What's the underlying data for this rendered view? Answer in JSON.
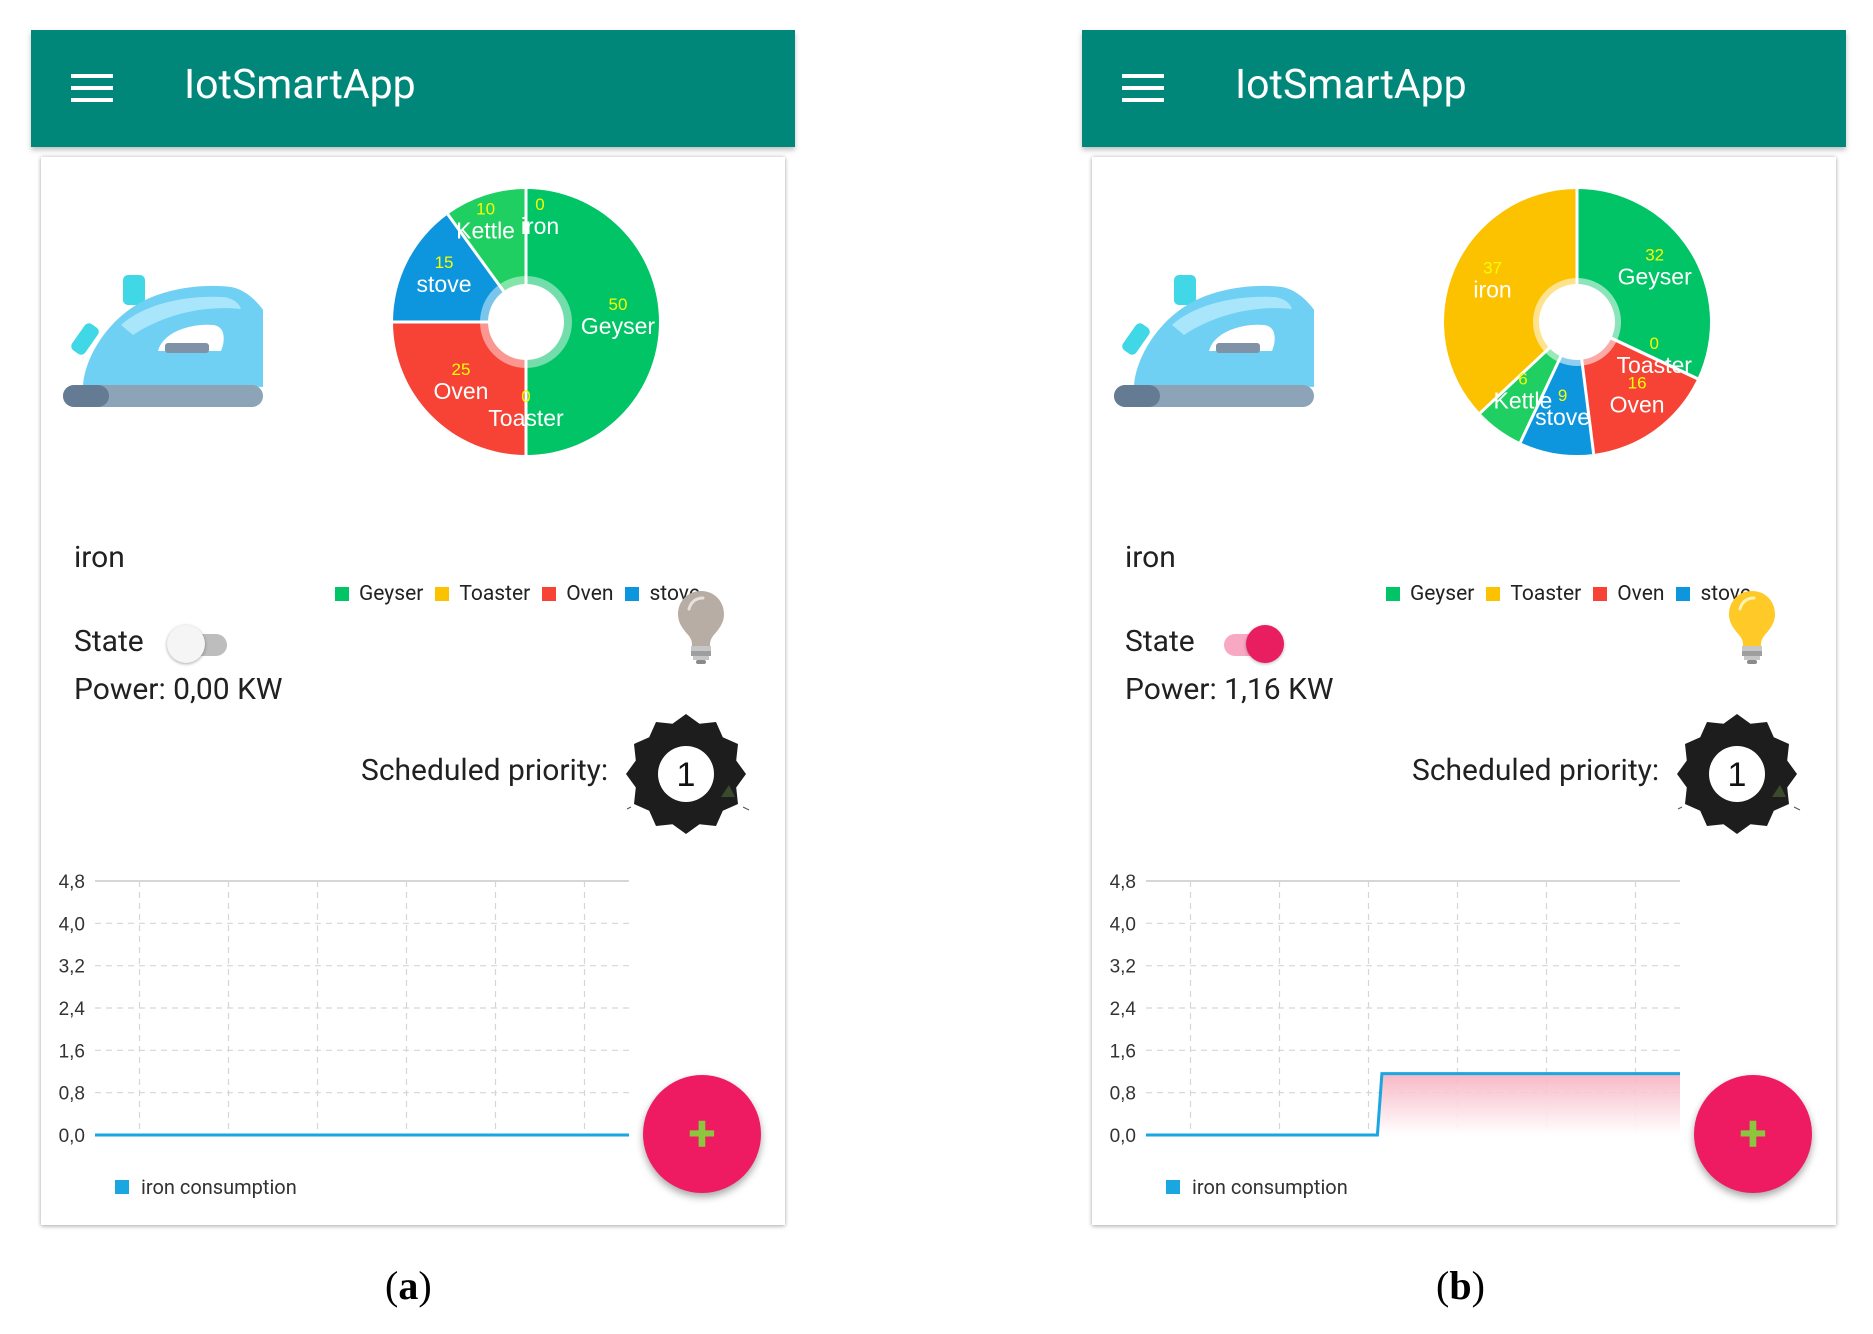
{
  "colors": {
    "appbar": "#01877a",
    "geyser": "#00c466",
    "toaster": "#fcc200",
    "oven": "#f64336",
    "stove": "#0d96dd",
    "kettle": "#1fcf62",
    "iron": "#fcc200",
    "fab": "#ee1b63",
    "fab_plus": "#8cc63f",
    "series_line": "#1aa6e0",
    "toggle_on": "#e81e61",
    "value_label": "#f5ff00"
  },
  "panels": [
    {
      "id": "a",
      "caption": {
        "open": "(",
        "letter": "a",
        "close": ")"
      },
      "app_title": "IotSmartApp",
      "device_name": "iron",
      "state_label": "State",
      "state_on": false,
      "power": "Power: 0,00 KW",
      "bulb_on": false,
      "scheduled_label": "Scheduled priority:",
      "priority": "1",
      "fab_label": "+",
      "legend": [
        "Geyser",
        "Toaster",
        "Oven",
        "stove"
      ],
      "chart_data": {
        "type": "pie",
        "ring": true,
        "slices": [
          {
            "name": "Geyser",
            "value": 50,
            "label": "50",
            "color_key": "geyser"
          },
          {
            "name": "Toaster",
            "value": 0,
            "label": "0",
            "color_key": "toaster"
          },
          {
            "name": "Oven",
            "value": 25,
            "label": "25",
            "color_key": "oven"
          },
          {
            "name": "stove",
            "value": 15,
            "label": "15",
            "color_key": "stove"
          },
          {
            "name": "Kettle",
            "value": 10,
            "label": "10",
            "color_key": "kettle"
          },
          {
            "name": "iron",
            "value": 0,
            "label": "0",
            "color_key": "iron"
          }
        ]
      },
      "consumption_chart": {
        "type": "line",
        "series_name": "iron consumption",
        "y_ticks": [
          "4,8",
          "4,0",
          "3,2",
          "2,4",
          "1,6",
          "0,8",
          "0,0"
        ],
        "ylim": [
          0,
          4.8
        ],
        "xlim": [
          0,
          12
        ],
        "x_gridlines": [
          1,
          3,
          5,
          7,
          9,
          11
        ],
        "points": [
          [
            0,
            0
          ],
          [
            12,
            0
          ]
        ],
        "fill": false
      }
    },
    {
      "id": "b",
      "caption": {
        "open": "(",
        "letter": "b",
        "close": ")"
      },
      "app_title": "IotSmartApp",
      "device_name": "iron",
      "state_label": "State",
      "state_on": true,
      "power": "Power: 1,16 KW",
      "bulb_on": true,
      "scheduled_label": "Scheduled priority:",
      "priority": "1",
      "fab_label": "+",
      "legend": [
        "Geyser",
        "Toaster",
        "Oven",
        "stove"
      ],
      "chart_data": {
        "type": "pie",
        "ring": false,
        "slices": [
          {
            "name": "Geyser",
            "value": 32,
            "label": "32",
            "color_key": "geyser"
          },
          {
            "name": "Toaster",
            "value": 0,
            "label": "0",
            "color_key": "toaster"
          },
          {
            "name": "Oven",
            "value": 16,
            "label": "16",
            "color_key": "oven"
          },
          {
            "name": "stove",
            "value": 9,
            "label": "9",
            "color_key": "stove"
          },
          {
            "name": "Kettle",
            "value": 6,
            "label": "6",
            "color_key": "kettle"
          },
          {
            "name": "iron",
            "value": 37,
            "label": "37",
            "color_key": "iron"
          }
        ]
      },
      "consumption_chart": {
        "type": "line",
        "series_name": "iron consumption",
        "y_ticks": [
          "4,8",
          "4,0",
          "3,2",
          "2,4",
          "1,6",
          "0,8",
          "0,0"
        ],
        "ylim": [
          0,
          4.8
        ],
        "xlim": [
          0,
          12
        ],
        "x_gridlines": [
          1,
          3,
          5,
          7,
          9,
          11
        ],
        "points": [
          [
            0,
            0
          ],
          [
            5.2,
            0
          ],
          [
            5.3,
            1.16
          ],
          [
            12,
            1.16
          ]
        ],
        "fill": true
      }
    }
  ]
}
